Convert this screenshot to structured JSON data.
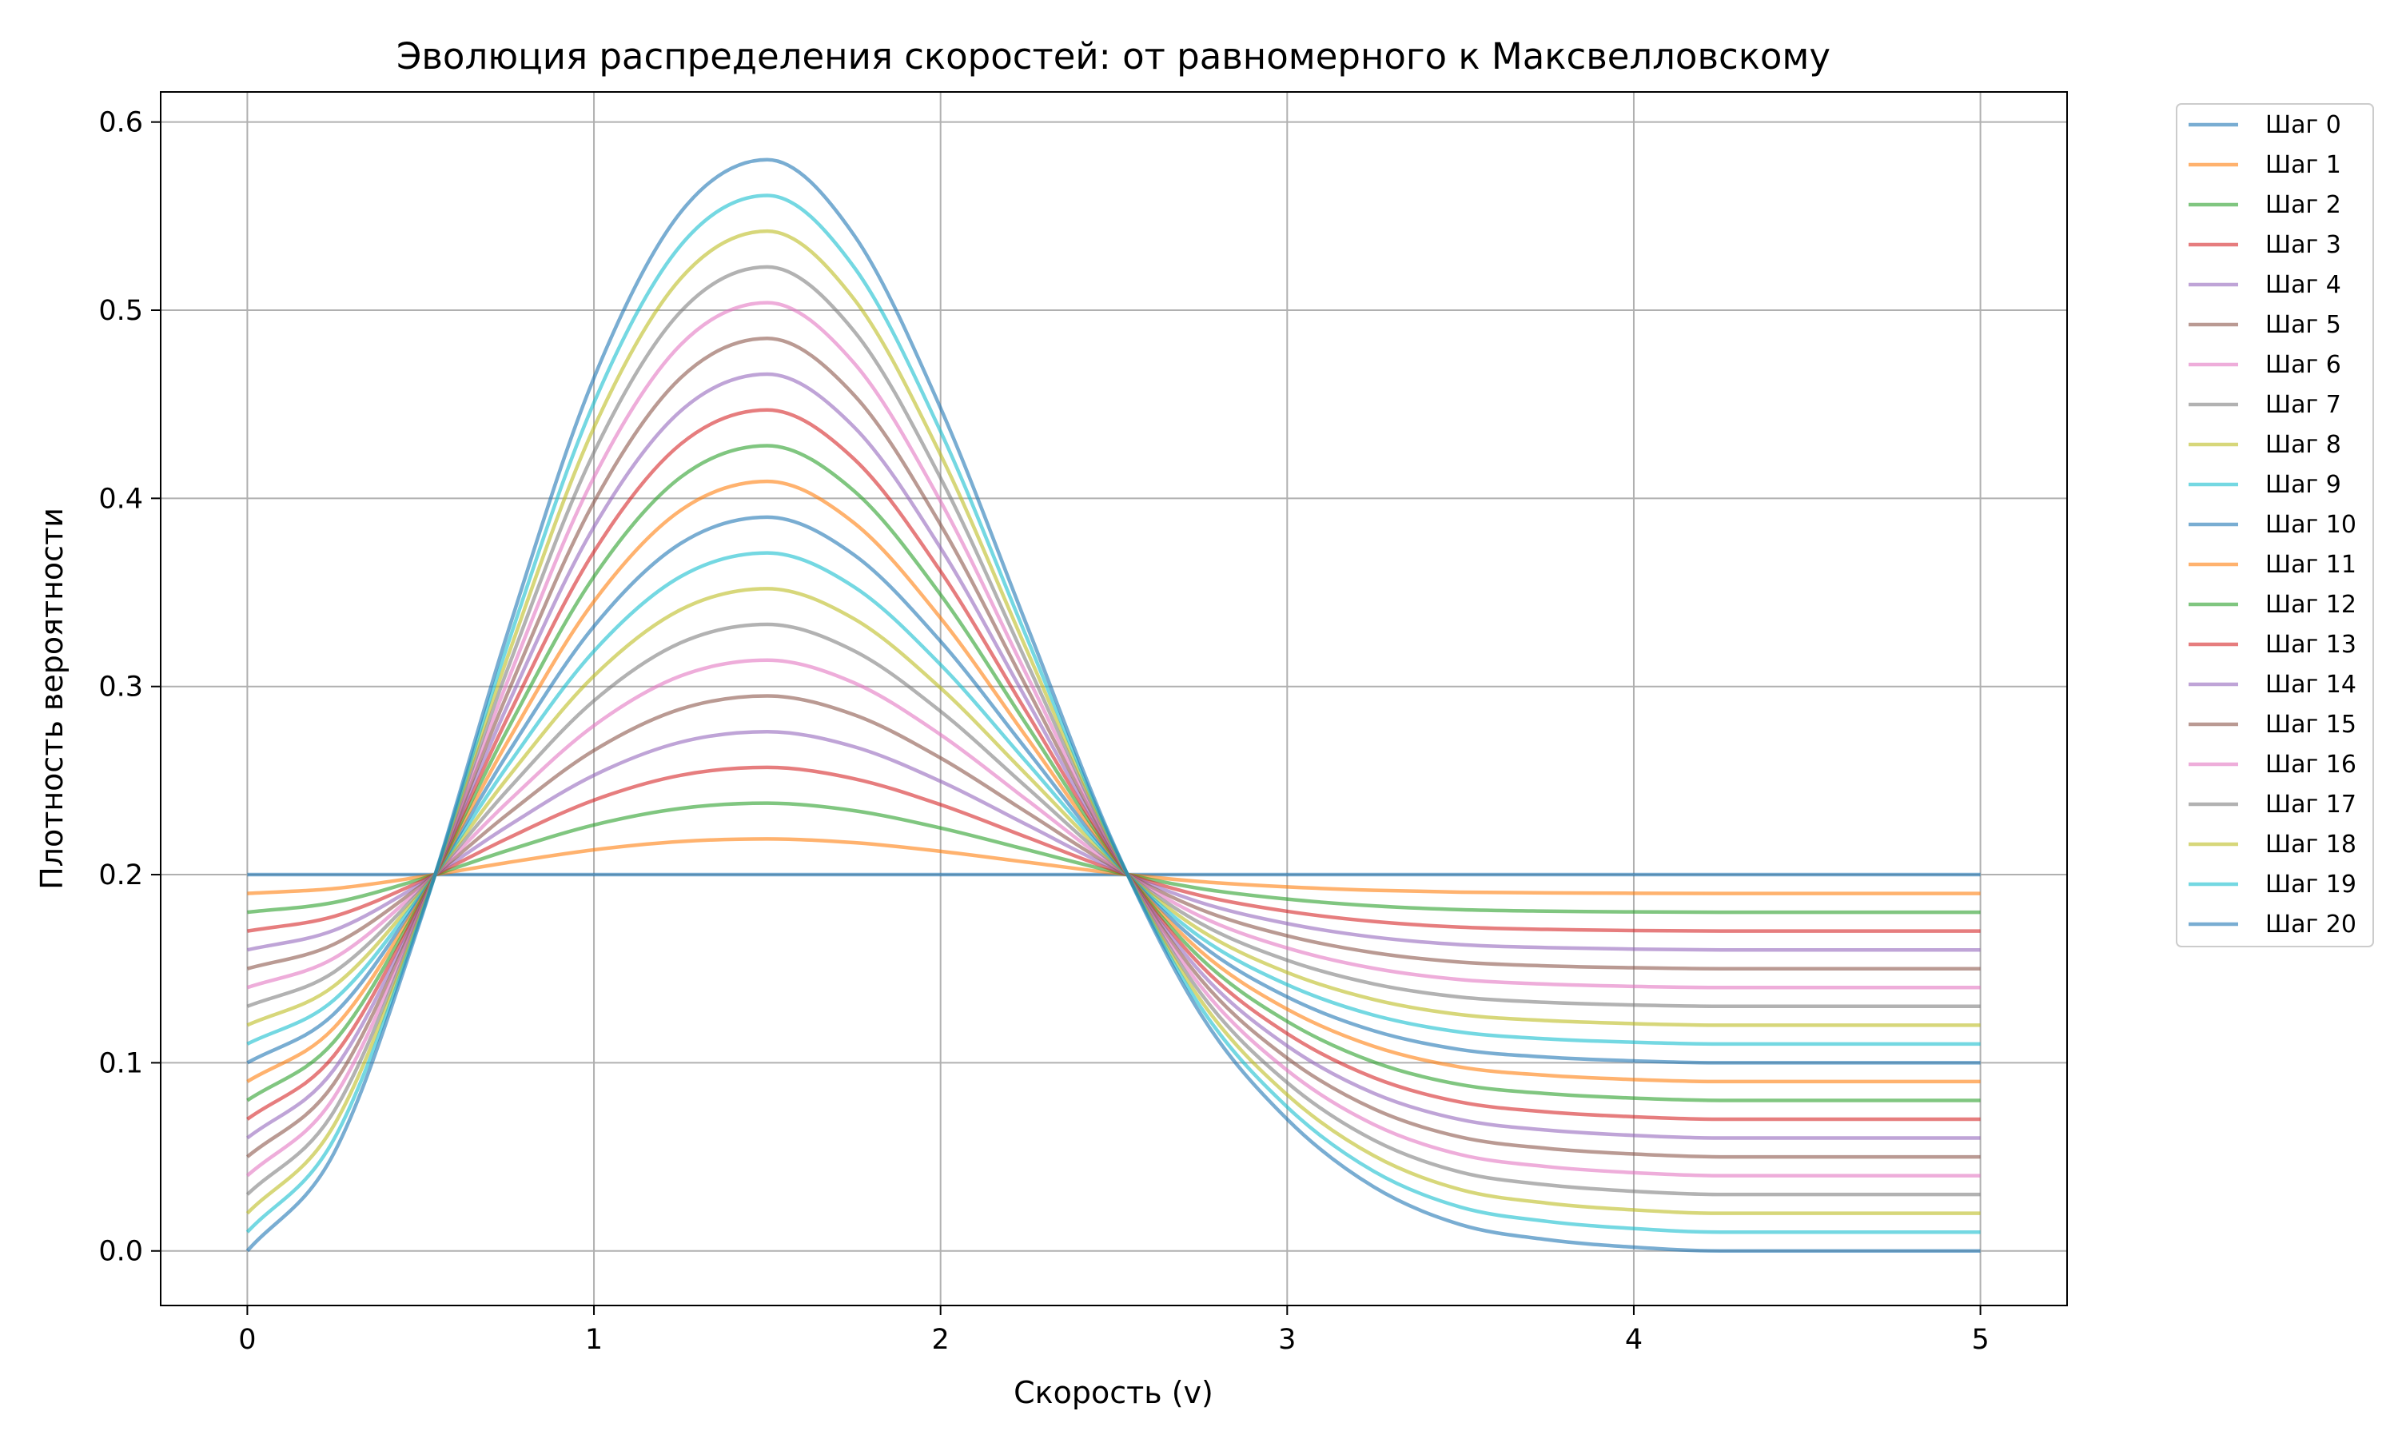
{
  "chart_data": {
    "type": "line",
    "title": "Эволюция распределения скоростей: от равномерного к Максвелловскому",
    "xlabel": "Скорость (v)",
    "ylabel": "Плотность вероятности",
    "xlim": [
      -0.25,
      5.25
    ],
    "ylim": [
      -0.029,
      0.616
    ],
    "xticks": [
      0,
      1,
      2,
      3,
      4,
      5
    ],
    "xtick_labels": [
      "0",
      "1",
      "2",
      "3",
      "4",
      "5"
    ],
    "yticks": [
      0.0,
      0.1,
      0.2,
      0.3,
      0.4,
      0.5,
      0.6
    ],
    "ytick_labels": [
      "0.0",
      "0.1",
      "0.2",
      "0.3",
      "0.4",
      "0.5",
      "0.6"
    ],
    "grid": true,
    "legend_position": "outside-top-right",
    "x": [
      0,
      0.25,
      0.5,
      0.75,
      1,
      1.25,
      1.5,
      1.75,
      2,
      2.25,
      2.5,
      2.75,
      3,
      3.25,
      3.5,
      3.75,
      4,
      4.25,
      4.5,
      4.75,
      5
    ],
    "series": [
      {
        "name": "Шаг 0",
        "color": "#1f77b4",
        "values": [
          0.2,
          0.2,
          0.2,
          0.2,
          0.2,
          0.2,
          0.2,
          0.2,
          0.2,
          0.2,
          0.2,
          0.2,
          0.2,
          0.2,
          0.2,
          0.2,
          0.2,
          0.2,
          0.2,
          0.2,
          0.2
        ]
      },
      {
        "name": "Шаг 1",
        "color": "#ff7f0e",
        "values": [
          0.19,
          0.1926,
          0.1988,
          0.2064,
          0.2132,
          0.2176,
          0.219,
          0.217,
          0.2124,
          0.2066,
          0.2008,
          0.1963,
          0.1935,
          0.1917,
          0.1907,
          0.1903,
          0.1901,
          0.19,
          0.19,
          0.19,
          0.19
        ]
      },
      {
        "name": "Шаг 2",
        "color": "#2ca02c",
        "values": [
          0.18,
          0.1852,
          0.1976,
          0.2128,
          0.2264,
          0.2352,
          0.238,
          0.234,
          0.2248,
          0.2132,
          0.2016,
          0.1926,
          0.187,
          0.1834,
          0.1814,
          0.1806,
          0.1802,
          0.18,
          0.18,
          0.18,
          0.18
        ]
      },
      {
        "name": "Шаг 3",
        "color": "#d62728",
        "values": [
          0.17,
          0.1778,
          0.1964,
          0.2192,
          0.2396,
          0.2528,
          0.257,
          0.251,
          0.2372,
          0.2198,
          0.2024,
          0.1889,
          0.1805,
          0.1751,
          0.1721,
          0.1709,
          0.1703,
          0.17,
          0.17,
          0.17,
          0.17
        ]
      },
      {
        "name": "Шаг 4",
        "color": "#9467bd",
        "values": [
          0.16,
          0.1704,
          0.1952,
          0.2256,
          0.2528,
          0.2704,
          0.276,
          0.268,
          0.2496,
          0.2264,
          0.2032,
          0.1852,
          0.174,
          0.1668,
          0.1628,
          0.1612,
          0.1604,
          0.16,
          0.16,
          0.16,
          0.16
        ]
      },
      {
        "name": "Шаг 5",
        "color": "#8c564b",
        "values": [
          0.15,
          0.163,
          0.194,
          0.232,
          0.266,
          0.288,
          0.295,
          0.285,
          0.262,
          0.233,
          0.204,
          0.1815,
          0.1675,
          0.1585,
          0.1535,
          0.1515,
          0.1505,
          0.15,
          0.15,
          0.15,
          0.15
        ]
      },
      {
        "name": "Шаг 6",
        "color": "#e377c2",
        "values": [
          0.14,
          0.1556,
          0.1928,
          0.2384,
          0.2792,
          0.3056,
          0.314,
          0.302,
          0.2744,
          0.2396,
          0.2048,
          0.1778,
          0.161,
          0.1502,
          0.1442,
          0.1418,
          0.1406,
          0.14,
          0.14,
          0.14,
          0.14
        ]
      },
      {
        "name": "Шаг 7",
        "color": "#7f7f7f",
        "values": [
          0.13,
          0.1482,
          0.1916,
          0.2448,
          0.2924,
          0.3232,
          0.333,
          0.319,
          0.2868,
          0.2462,
          0.2056,
          0.1741,
          0.1545,
          0.1419,
          0.1349,
          0.1321,
          0.1307,
          0.13,
          0.13,
          0.13,
          0.13
        ]
      },
      {
        "name": "Шаг 8",
        "color": "#bcbd22",
        "values": [
          0.12,
          0.1408,
          0.1904,
          0.2512,
          0.3056,
          0.3408,
          0.352,
          0.336,
          0.2992,
          0.2528,
          0.2064,
          0.1704,
          0.148,
          0.1336,
          0.1256,
          0.1224,
          0.1208,
          0.12,
          0.12,
          0.12,
          0.12
        ]
      },
      {
        "name": "Шаг 9",
        "color": "#17becf",
        "values": [
          0.11,
          0.1334,
          0.1892,
          0.2576,
          0.3188,
          0.3584,
          0.371,
          0.353,
          0.3116,
          0.2594,
          0.2072,
          0.1667,
          0.1415,
          0.1253,
          0.1163,
          0.1127,
          0.1109,
          0.11,
          0.11,
          0.11,
          0.11
        ]
      },
      {
        "name": "Шаг 10",
        "color": "#1f77b4",
        "values": [
          0.1,
          0.126,
          0.188,
          0.264,
          0.332,
          0.376,
          0.39,
          0.37,
          0.324,
          0.266,
          0.208,
          0.163,
          0.135,
          0.117,
          0.107,
          0.103,
          0.101,
          0.1,
          0.1,
          0.1,
          0.1
        ]
      },
      {
        "name": "Шаг 11",
        "color": "#ff7f0e",
        "values": [
          0.09,
          0.1186,
          0.1868,
          0.2704,
          0.3452,
          0.3936,
          0.409,
          0.387,
          0.3364,
          0.2726,
          0.2088,
          0.1593,
          0.1285,
          0.1087,
          0.0977,
          0.0933,
          0.0911,
          0.09,
          0.09,
          0.09,
          0.09
        ]
      },
      {
        "name": "Шаг 12",
        "color": "#2ca02c",
        "values": [
          0.08,
          0.1112,
          0.1856,
          0.2768,
          0.3584,
          0.4112,
          0.428,
          0.404,
          0.3488,
          0.2792,
          0.2096,
          0.1556,
          0.122,
          0.1004,
          0.0884,
          0.0836,
          0.0812,
          0.08,
          0.08,
          0.08,
          0.08
        ]
      },
      {
        "name": "Шаг 13",
        "color": "#d62728",
        "values": [
          0.07,
          0.1038,
          0.1844,
          0.2832,
          0.3716,
          0.4288,
          0.447,
          0.421,
          0.3612,
          0.2858,
          0.2104,
          0.1519,
          0.1155,
          0.0921,
          0.0791,
          0.0739,
          0.0713,
          0.07,
          0.07,
          0.07,
          0.07
        ]
      },
      {
        "name": "Шаг 14",
        "color": "#9467bd",
        "values": [
          0.06,
          0.0964,
          0.1832,
          0.2896,
          0.3848,
          0.4464,
          0.466,
          0.438,
          0.3736,
          0.2924,
          0.2112,
          0.1482,
          0.109,
          0.0838,
          0.0698,
          0.0642,
          0.0614,
          0.06,
          0.06,
          0.06,
          0.06
        ]
      },
      {
        "name": "Шаг 15",
        "color": "#8c564b",
        "values": [
          0.05,
          0.089,
          0.182,
          0.296,
          0.398,
          0.464,
          0.485,
          0.455,
          0.386,
          0.299,
          0.212,
          0.1445,
          0.1025,
          0.0755,
          0.0605,
          0.0545,
          0.0515,
          0.05,
          0.05,
          0.05,
          0.05
        ]
      },
      {
        "name": "Шаг 16",
        "color": "#e377c2",
        "values": [
          0.04,
          0.0816,
          0.1808,
          0.3024,
          0.4112,
          0.4816,
          0.504,
          0.472,
          0.3984,
          0.3056,
          0.2128,
          0.1408,
          0.096,
          0.0672,
          0.0512,
          0.0448,
          0.0416,
          0.04,
          0.04,
          0.04,
          0.04
        ]
      },
      {
        "name": "Шаг 17",
        "color": "#7f7f7f",
        "values": [
          0.03,
          0.0742,
          0.1796,
          0.3088,
          0.4244,
          0.4992,
          0.523,
          0.489,
          0.4108,
          0.3122,
          0.2136,
          0.1371,
          0.0895,
          0.0589,
          0.0419,
          0.0351,
          0.0317,
          0.03,
          0.03,
          0.03,
          0.03
        ]
      },
      {
        "name": "Шаг 18",
        "color": "#bcbd22",
        "values": [
          0.02,
          0.0668,
          0.1784,
          0.3152,
          0.4376,
          0.5168,
          0.542,
          0.506,
          0.4232,
          0.3188,
          0.2144,
          0.1334,
          0.083,
          0.0506,
          0.0326,
          0.0254,
          0.0218,
          0.02,
          0.02,
          0.02,
          0.02
        ]
      },
      {
        "name": "Шаг 19",
        "color": "#17becf",
        "values": [
          0.01,
          0.0594,
          0.1772,
          0.3216,
          0.4508,
          0.5344,
          0.561,
          0.523,
          0.4356,
          0.3254,
          0.2152,
          0.1297,
          0.0765,
          0.0423,
          0.0233,
          0.0157,
          0.0119,
          0.01,
          0.01,
          0.01,
          0.01
        ]
      },
      {
        "name": "Шаг 20",
        "color": "#1f77b4",
        "values": [
          0.0,
          0.052,
          0.176,
          0.328,
          0.464,
          0.552,
          0.58,
          0.54,
          0.448,
          0.332,
          0.216,
          0.126,
          0.07,
          0.034,
          0.014,
          0.006,
          0.002,
          0.0,
          0.0,
          0.0,
          0.0
        ]
      }
    ]
  }
}
